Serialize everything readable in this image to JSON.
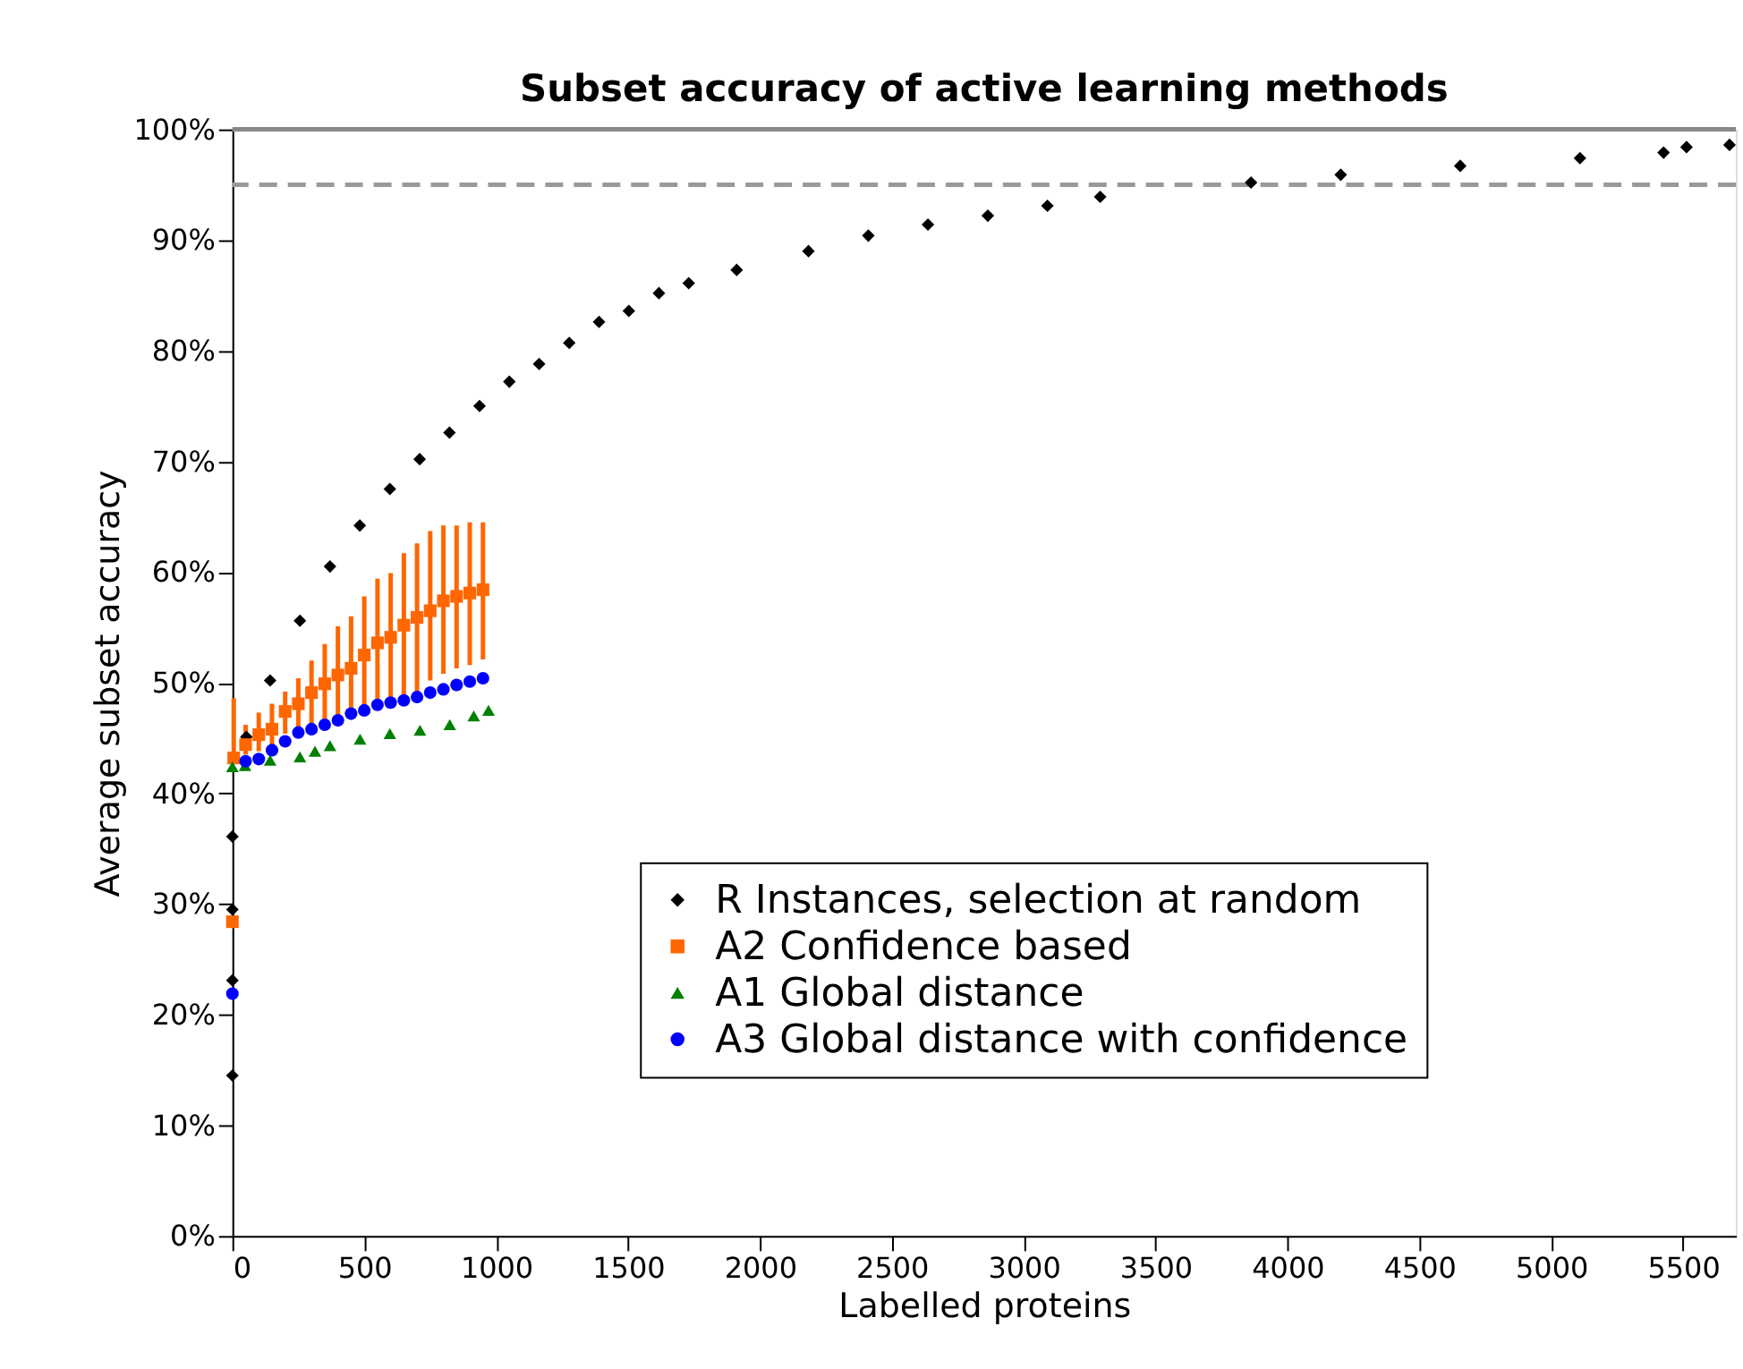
{
  "chart_data": {
    "type": "scatter",
    "title": "Subset accuracy of active learning methods",
    "xlabel": "Labelled proteins",
    "ylabel": "Average subset accuracy",
    "xlim": [
      0,
      5700
    ],
    "xticks": [
      0,
      500,
      1000,
      1500,
      2000,
      2500,
      3000,
      3500,
      4000,
      4500,
      5000,
      5500
    ],
    "ylim": [
      0,
      100
    ],
    "yticks": [
      {
        "value": 0,
        "label": "0%"
      },
      {
        "value": 10,
        "label": "10%"
      },
      {
        "value": 20,
        "label": "20%"
      },
      {
        "value": 30,
        "label": "30%"
      },
      {
        "value": 40,
        "label": "40%"
      },
      {
        "value": 50,
        "label": "50%"
      },
      {
        "value": 60,
        "label": "60%"
      },
      {
        "value": 70,
        "label": "70%"
      },
      {
        "value": 80,
        "label": "80%"
      },
      {
        "value": 90,
        "label": "90%"
      },
      {
        "value": 100,
        "label": "100%"
      }
    ],
    "grid": false,
    "legend": "bottom right",
    "ref_lines": [
      {
        "axis": "y",
        "value": 95,
        "color": "#999999",
        "line_style": "dashed"
      },
      {
        "axis": "y",
        "value": 100,
        "color": "#888888",
        "line_style": "solid"
      }
    ],
    "series": [
      {
        "name": "R Instances, selection at random",
        "color": "#000000",
        "marker": "diamond",
        "x": [
          0,
          0,
          0,
          0,
          53,
          143,
          256,
          370,
          483,
          597,
          710,
          823,
          937,
          1050,
          1163,
          1277,
          1390,
          1503,
          1617,
          1730,
          1912,
          2184,
          2411,
          2637,
          2864,
          3090,
          3290,
          3862,
          4202,
          4655,
          5109,
          5426,
          5513,
          5676
        ],
        "values": [
          14.5,
          23.1,
          29.5,
          36.1,
          45.1,
          50.2,
          55.6,
          60.5,
          64.2,
          67.5,
          70.2,
          72.6,
          75.0,
          77.2,
          78.8,
          80.7,
          82.6,
          83.6,
          85.2,
          86.1,
          87.3,
          89.0,
          90.4,
          91.4,
          92.2,
          93.1,
          93.9,
          95.2,
          95.9,
          96.7,
          97.4,
          97.9,
          98.4,
          98.6
        ]
      },
      {
        "name": "A2 Confidence based",
        "color": "#ff6600",
        "marker": "square",
        "x": [
          0,
          5,
          50,
          100,
          150,
          200,
          250,
          300,
          350,
          400,
          450,
          500,
          550,
          600,
          650,
          700,
          750,
          800,
          850,
          900,
          950
        ],
        "values": [
          28.4,
          43.2,
          44.4,
          45.3,
          45.8,
          47.4,
          48.1,
          49.1,
          49.9,
          50.7,
          51.3,
          52.5,
          53.6,
          54.1,
          55.2,
          55.9,
          56.5,
          57.4,
          57.8,
          58.1,
          58.4
        ],
        "errors": [
          null,
          [
            42.7,
            48.6
          ],
          [
            43.5,
            46.2
          ],
          [
            43.8,
            47.3
          ],
          [
            44.1,
            48.1
          ],
          [
            45.4,
            49.2
          ],
          [
            45.7,
            50.4
          ],
          [
            46.2,
            52.0
          ],
          [
            46.5,
            53.5
          ],
          [
            46.7,
            55.1
          ],
          [
            47.0,
            56.0
          ],
          [
            47.5,
            57.8
          ],
          [
            47.8,
            59.4
          ],
          [
            48.1,
            59.9
          ],
          [
            48.6,
            61.7
          ],
          [
            49.2,
            62.6
          ],
          [
            50.2,
            63.7
          ],
          [
            50.8,
            64.2
          ],
          [
            51.3,
            64.2
          ],
          [
            51.6,
            64.5
          ],
          [
            52.1,
            64.5
          ]
        ]
      },
      {
        "name": "A1 Global distance",
        "color": "#008000",
        "marker": "triangle",
        "x": [
          0,
          48,
          143,
          256,
          313,
          370,
          484,
          597,
          711,
          824,
          915,
          971
        ],
        "values": [
          42.4,
          42.5,
          43.0,
          43.3,
          43.8,
          44.3,
          44.9,
          45.4,
          45.7,
          46.2,
          47.0,
          47.5
        ]
      },
      {
        "name": "A3 Global distance with confidence",
        "color": "#0000ff",
        "marker": "circle",
        "x": [
          0,
          50,
          100,
          150,
          200,
          250,
          300,
          350,
          400,
          450,
          500,
          550,
          600,
          650,
          700,
          750,
          800,
          850,
          900,
          950
        ],
        "values": [
          21.9,
          42.9,
          43.1,
          43.9,
          44.7,
          45.5,
          45.8,
          46.2,
          46.6,
          47.2,
          47.5,
          48.0,
          48.2,
          48.4,
          48.7,
          49.1,
          49.4,
          49.8,
          50.1,
          50.4
        ]
      }
    ]
  }
}
